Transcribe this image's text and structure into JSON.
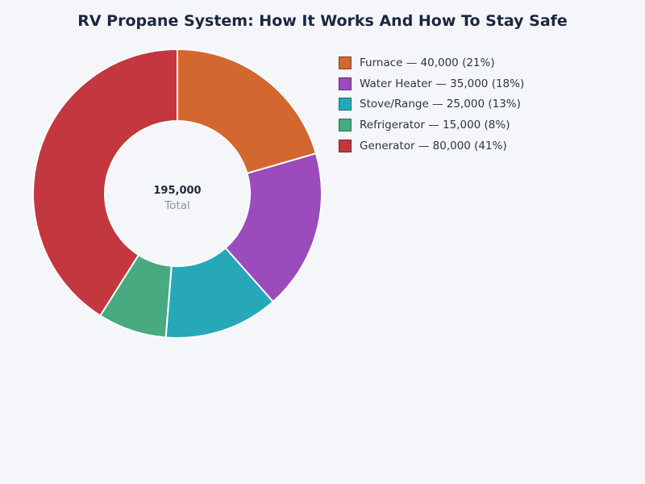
{
  "chart_data": {
    "type": "pie",
    "title": "RV Propane System: How It Works And How To Stay Safe",
    "slices": [
      {
        "label": "Furnace",
        "value": 40000,
        "percent_label": "21%",
        "color": "#d2672f",
        "legend_text": "Furnace — 40,000 (21%)"
      },
      {
        "label": "Water Heater",
        "value": 35000,
        "percent_label": "18%",
        "color": "#9b4bbb",
        "legend_text": "Water Heater — 35,000 (18%)"
      },
      {
        "label": "Stove/Range",
        "value": 25000,
        "percent_label": "13%",
        "color": "#26a8b8",
        "legend_text": "Stove/Range — 25,000 (13%)"
      },
      {
        "label": "Refrigerator",
        "value": 15000,
        "percent_label": "8%",
        "color": "#47aa80",
        "legend_text": "Refrigerator — 15,000 (8%)"
      },
      {
        "label": "Generator",
        "value": 80000,
        "percent_label": "41%",
        "color": "#c3373f",
        "legend_text": "Generator — 80,000 (41%)"
      }
    ],
    "center": {
      "total": "195,000",
      "caption": "Total"
    },
    "legend_position": "top-right",
    "style": "donut"
  }
}
